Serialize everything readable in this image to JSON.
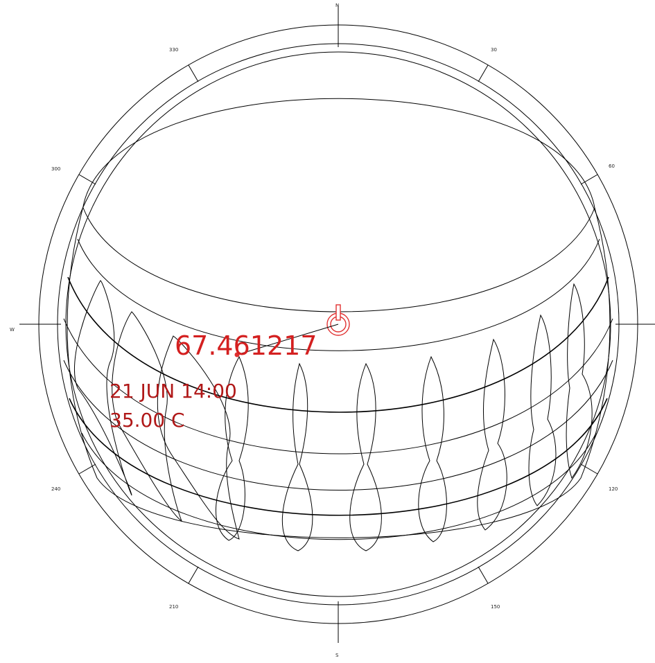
{
  "diagram": {
    "cardinal_labels": {
      "north": "N",
      "south": "S",
      "west": "W"
    },
    "azimuth_labels": [
      "30",
      "60",
      "120",
      "150",
      "210",
      "240",
      "300",
      "330"
    ],
    "readout": {
      "value": "67.461217",
      "datetime": "21 JUN 14:00",
      "temperature": "35.00 C"
    },
    "colors": {
      "line": "#000000",
      "marker": "#e03030",
      "readout": "#d42020",
      "readout_dark": "#b01818"
    }
  }
}
